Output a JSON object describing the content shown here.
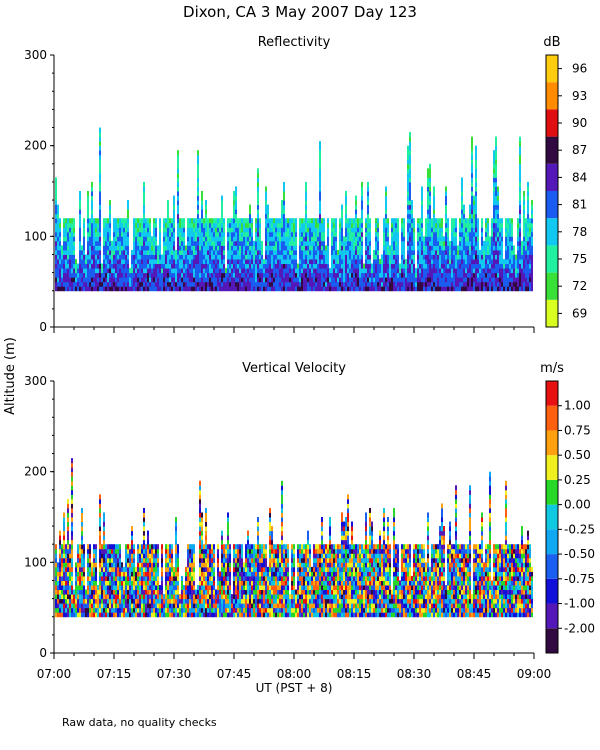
{
  "figure": {
    "title": "Dixon, CA  3 May 2007  Day 123",
    "ylabel": "Altitude (m)",
    "xlabel": "UT  (PST + 8)",
    "footnote": "Raw data, no quality checks"
  },
  "chart_data": [
    {
      "type": "heatmap",
      "title": "Reflectivity",
      "colorbar_unit": "dB",
      "ylim": [
        0,
        300
      ],
      "yticks": [
        0,
        100,
        200,
        300
      ],
      "x_range": [
        "07:00",
        "09:00"
      ],
      "colorbar_ticks": [
        "69",
        "72",
        "75",
        "78",
        "81",
        "84",
        "87",
        "90",
        "93",
        "96"
      ],
      "colorbar_colors": [
        "#d8ff20",
        "#38e038",
        "#20f0a0",
        "#10c8f0",
        "#1a5cf0",
        "#5418b8",
        "#320a40",
        "#e01010",
        "#ff8c00",
        "#ffcc10"
      ],
      "data_floor_m": 40,
      "typical_top_m": 120
    },
    {
      "type": "heatmap",
      "title": "Vertical Velocity",
      "colorbar_unit": "m/s",
      "ylim": [
        0,
        300
      ],
      "yticks": [
        0,
        100,
        200,
        300
      ],
      "x_range": [
        "07:00",
        "09:00"
      ],
      "colorbar_ticks": [
        "-2.00",
        "-1.00",
        "-0.75",
        "-0.50",
        "-0.25",
        "0.00",
        "0.25",
        "0.50",
        "0.75",
        "1.00"
      ],
      "colorbar_colors": [
        "#320a40",
        "#5418b8",
        "#1010d8",
        "#1a60f0",
        "#10a8f0",
        "#10c8e0",
        "#28d828",
        "#f0f020",
        "#ffa010",
        "#ff6010",
        "#e81010"
      ],
      "data_floor_m": 40,
      "typical_top_m": 120
    }
  ],
  "x_axis": {
    "ticks": [
      "07:00",
      "07:15",
      "07:30",
      "07:45",
      "08:00",
      "08:15",
      "08:30",
      "08:45",
      "09:00"
    ]
  }
}
